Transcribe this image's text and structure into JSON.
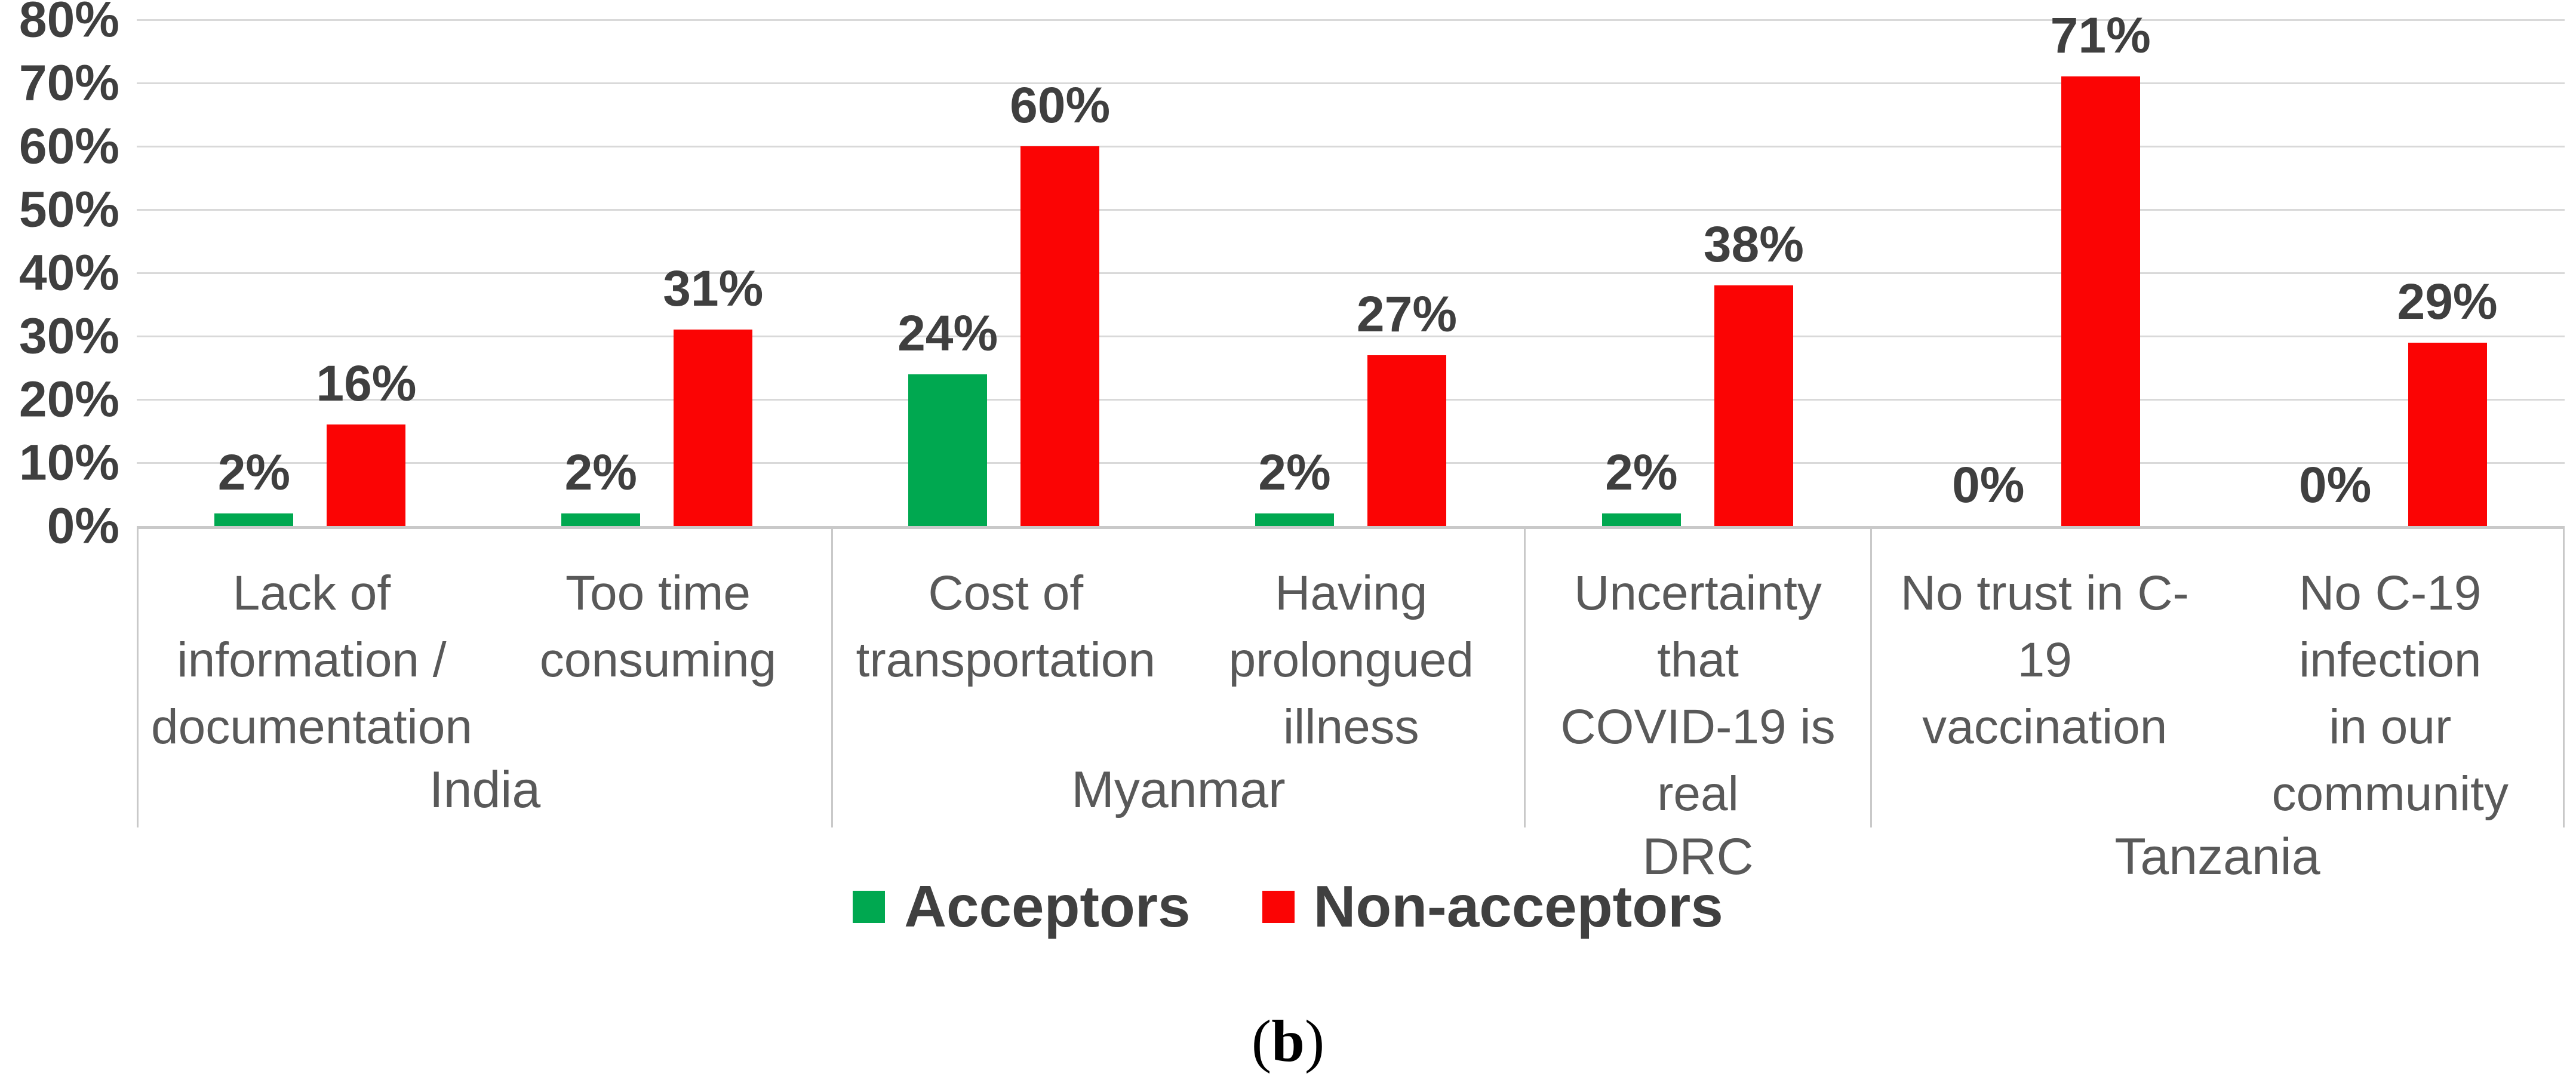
{
  "chart_data": {
    "type": "bar",
    "title": "",
    "xlabel": "",
    "ylabel": "",
    "ylim": [
      0,
      80
    ],
    "y_tick_labels": [
      "80%",
      "70%",
      "60%",
      "50%",
      "40%",
      "30%",
      "20%",
      "10%",
      "0%"
    ],
    "grid": true,
    "legend_position": "bottom-center",
    "data_label_suffix": "%",
    "series": [
      {
        "key": "acceptors",
        "name": "Acceptors",
        "color": "#00A850"
      },
      {
        "key": "non_acceptors",
        "name": "Non-acceptors",
        "color": "#FB0404"
      }
    ],
    "groups": [
      {
        "label": "India",
        "categories": [
          {
            "label": "Lack of information / documentation",
            "lines": [
              "Lack of",
              "information /",
              "documentation"
            ],
            "values": {
              "acceptors": 2,
              "non_acceptors": 16
            }
          },
          {
            "label": "Too time consuming",
            "lines": [
              "Too time",
              "consuming"
            ],
            "values": {
              "acceptors": 2,
              "non_acceptors": 31
            }
          }
        ]
      },
      {
        "label": "Myanmar",
        "categories": [
          {
            "label": "Cost of transportation",
            "lines": [
              "Cost of",
              "transportation"
            ],
            "values": {
              "acceptors": 24,
              "non_acceptors": 60
            }
          },
          {
            "label": "Having prolongued illness",
            "lines": [
              "Having",
              "prolongued",
              "illness"
            ],
            "values": {
              "acceptors": 2,
              "non_acceptors": 27
            }
          }
        ]
      },
      {
        "label": "DRC",
        "categories": [
          {
            "label": "Uncertainty that COVID-19 is real",
            "lines": [
              "Uncertainty that",
              "COVID-19 is real"
            ],
            "values": {
              "acceptors": 2,
              "non_acceptors": 38
            }
          }
        ]
      },
      {
        "label": "Tanzania",
        "categories": [
          {
            "label": "No trust in C-19 vaccination",
            "lines": [
              "No trust in C-19",
              "vaccination"
            ],
            "values": {
              "acceptors": 0,
              "non_acceptors": 71
            }
          },
          {
            "label": "No C-19 infection in our community",
            "lines": [
              "No C-19 infection",
              "in our community"
            ],
            "values": {
              "acceptors": 0,
              "non_acceptors": 29
            }
          }
        ]
      }
    ]
  },
  "colors": {
    "gridline": "#D9D9D9",
    "axis_line": "#C9C9C9",
    "number_text": "#3F3F3F",
    "category_text": "#595959"
  },
  "caption": {
    "open": "(",
    "letter": "b",
    "close": ")"
  }
}
